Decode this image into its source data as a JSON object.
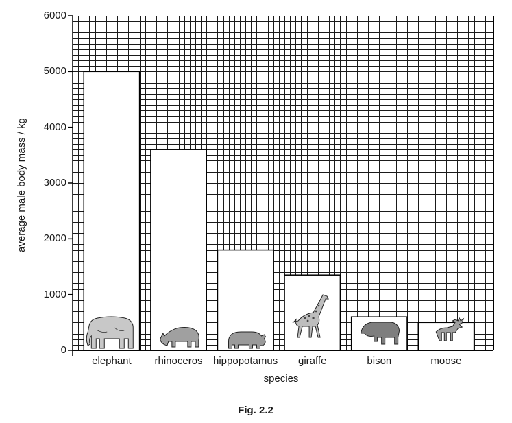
{
  "figure": {
    "caption": "Fig. 2.2"
  },
  "chart_data": {
    "type": "bar",
    "title": "",
    "xlabel": "species",
    "ylabel": "average male body mass / kg",
    "categories": [
      "elephant",
      "rhinoceros",
      "hippopotamus",
      "giraffe",
      "bison",
      "moose"
    ],
    "values": [
      5000,
      3600,
      1800,
      1350,
      600,
      500
    ],
    "units": "kg",
    "ylim": [
      0,
      6000
    ],
    "yticks": [
      0,
      1000,
      2000,
      3000,
      4000,
      5000,
      6000
    ],
    "ytick_labels": [
      "0",
      "1000",
      "2000",
      "3000",
      "4000",
      "5000",
      "6000"
    ],
    "grid": true,
    "grid_minor_step": 100,
    "legend": null,
    "bar_icons": [
      "elephant-icon",
      "rhinoceros-icon",
      "hippopotamus-icon",
      "giraffe-icon",
      "bison-icon",
      "moose-icon"
    ],
    "colors": {
      "bar_fill": "#ffffff",
      "bar_stroke": "#000000",
      "grid": "#1a1a1a",
      "animal_fill": "#a8a8a8"
    }
  }
}
